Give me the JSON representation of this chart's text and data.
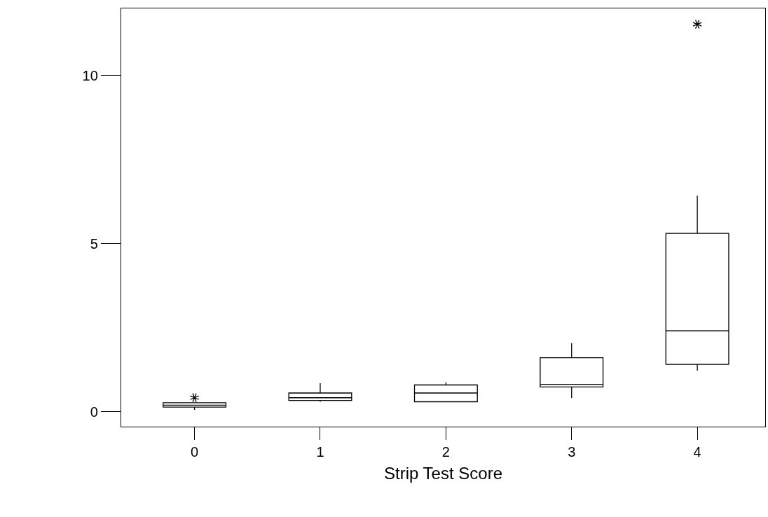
{
  "chart_data": {
    "type": "box",
    "xlabel": "Strip Test Score",
    "categories": [
      "0",
      "1",
      "2",
      "3",
      "4"
    ],
    "boxes": [
      {
        "low": 0.06,
        "q1": 0.14,
        "median": 0.2,
        "q3": 0.27,
        "high": 0.27,
        "outliers": [
          0.42
        ]
      },
      {
        "low": 0.3,
        "q1": 0.34,
        "median": 0.42,
        "q3": 0.56,
        "high": 0.85
      },
      {
        "low": 0.3,
        "q1": 0.3,
        "median": 0.56,
        "q3": 0.8,
        "high": 0.88
      },
      {
        "low": 0.41,
        "q1": 0.74,
        "median": 0.82,
        "q3": 1.61,
        "high": 2.04
      },
      {
        "low": 1.22,
        "q1": 1.41,
        "median": 2.41,
        "q3": 5.31,
        "high": 6.43,
        "outliers": [
          11.53
        ]
      }
    ],
    "ylim": [
      -0.44,
      12
    ],
    "yticks": [
      0,
      5,
      10
    ]
  }
}
